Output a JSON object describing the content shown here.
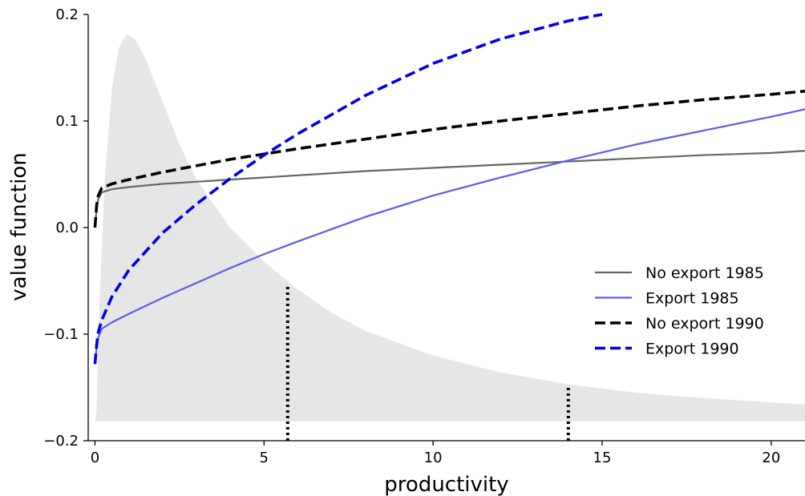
{
  "chart_data": {
    "type": "line",
    "xlabel": "productivity",
    "ylabel": "value function",
    "xlim": [
      -0.2,
      21
    ],
    "ylim": [
      -0.2,
      0.2
    ],
    "x_ticks": [
      0,
      5,
      10,
      15,
      20
    ],
    "x_tick_labels": [
      "0",
      "5",
      "10",
      "15",
      "20"
    ],
    "y_ticks": [
      -0.2,
      -0.1,
      0.0,
      0.1,
      0.2
    ],
    "y_tick_labels": [
      "−0.2",
      "−0.1",
      "0.0",
      "0.1",
      "0.2"
    ],
    "grid": false,
    "legend_position": "right",
    "series": [
      {
        "name": "No export 1985",
        "style": "solid",
        "color": "#666666",
        "x": [
          0,
          0.05,
          0.1,
          0.2,
          0.5,
          1,
          2,
          3,
          4,
          5,
          6,
          8,
          10,
          12,
          14,
          16,
          18,
          20,
          21
        ],
        "y": [
          0.0,
          0.018,
          0.027,
          0.033,
          0.036,
          0.038,
          0.041,
          0.043,
          0.045,
          0.047,
          0.049,
          0.053,
          0.056,
          0.059,
          0.062,
          0.065,
          0.068,
          0.07,
          0.072
        ]
      },
      {
        "name": "Export 1985",
        "style": "solid",
        "color": "#5c5ce8",
        "x": [
          0,
          0.05,
          0.1,
          0.2,
          0.5,
          1,
          2,
          3,
          4,
          5,
          6,
          8,
          10,
          12,
          14,
          16,
          18,
          20,
          21
        ],
        "y": [
          -0.128,
          -0.112,
          -0.103,
          -0.095,
          -0.089,
          -0.081,
          -0.066,
          -0.052,
          -0.038,
          -0.025,
          -0.013,
          0.01,
          0.03,
          0.047,
          0.063,
          0.078,
          0.091,
          0.104,
          0.111
        ]
      },
      {
        "name": "No export 1990",
        "style": "dashed",
        "color": "#000000",
        "x": [
          0,
          0.05,
          0.1,
          0.2,
          0.5,
          1,
          2,
          3,
          4,
          5,
          6,
          8,
          10,
          12,
          14,
          16,
          18,
          20,
          21
        ],
        "y": [
          0.0,
          0.021,
          0.03,
          0.037,
          0.041,
          0.045,
          0.052,
          0.058,
          0.064,
          0.069,
          0.074,
          0.083,
          0.092,
          0.1,
          0.107,
          0.114,
          0.12,
          0.125,
          0.128
        ]
      },
      {
        "name": "Export 1990",
        "style": "dashed",
        "color": "#0000e6",
        "x": [
          0,
          0.05,
          0.1,
          0.2,
          0.5,
          1,
          2,
          3,
          4,
          5,
          6,
          8,
          10,
          12,
          14,
          15
        ],
        "y": [
          -0.128,
          -0.11,
          -0.098,
          -0.087,
          -0.065,
          -0.04,
          -0.005,
          0.022,
          0.046,
          0.068,
          0.088,
          0.124,
          0.154,
          0.177,
          0.194,
          0.2
        ]
      }
    ],
    "density_shading": {
      "color": "#e6e6e6",
      "x": [
        0,
        0.05,
        0.1,
        0.2,
        0.3,
        0.5,
        0.7,
        0.9,
        1.0,
        1.2,
        1.5,
        2,
        2.5,
        3,
        4,
        5,
        6,
        7,
        8,
        10,
        12,
        14,
        16,
        18,
        20,
        21
      ],
      "y": [
        -0.182,
        -0.17,
        -0.1,
        -0.02,
        0.05,
        0.13,
        0.168,
        0.18,
        0.181,
        0.176,
        0.158,
        0.118,
        0.078,
        0.045,
        0.0,
        -0.032,
        -0.058,
        -0.08,
        -0.097,
        -0.12,
        -0.136,
        -0.147,
        -0.155,
        -0.16,
        -0.164,
        -0.166
      ],
      "baseline": -0.182
    },
    "threshold_lines": [
      {
        "x": 5.7,
        "y_top": -0.053
      },
      {
        "x": 14.0,
        "y_top": -0.15
      }
    ]
  }
}
